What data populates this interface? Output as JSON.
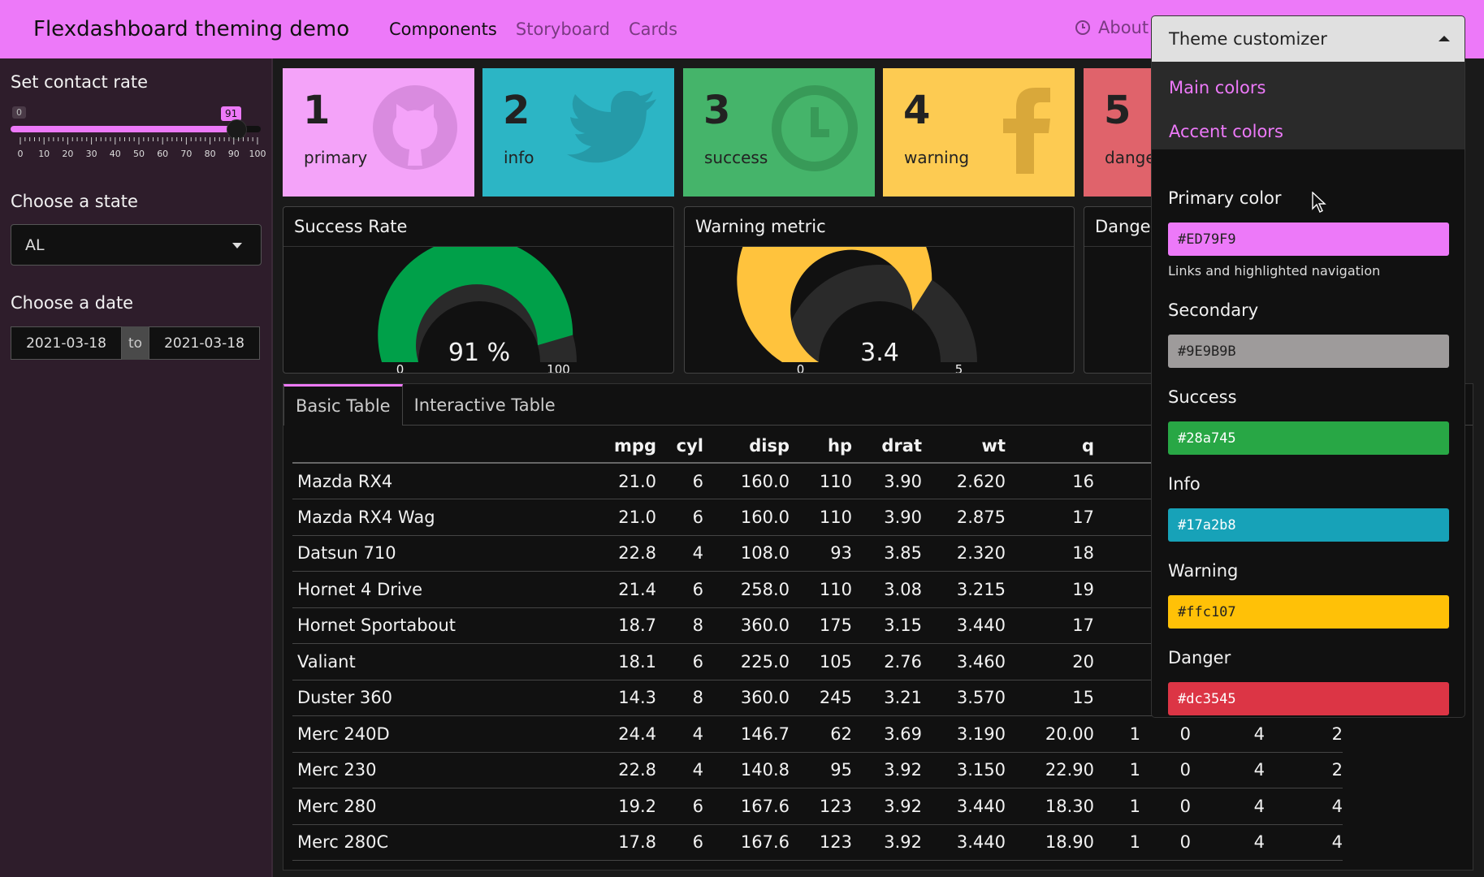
{
  "navbar": {
    "brand": "Flexdashboard theming demo",
    "links": [
      "Components",
      "Storyboard",
      "Cards"
    ],
    "about": "About",
    "bg_color": "#ED79F9"
  },
  "sidebar": {
    "contact_label": "Set contact rate",
    "slider": {
      "min": 0,
      "max": 100,
      "value": 91,
      "min_label": "0",
      "value_label": "91",
      "ticks": [
        "0",
        "10",
        "20",
        "30",
        "40",
        "50",
        "60",
        "70",
        "80",
        "90",
        "100"
      ]
    },
    "state_label": "Choose a state",
    "state_value": "AL",
    "date_label": "Choose a date",
    "date_start": "2021-03-18",
    "date_sep": "to",
    "date_end": "2021-03-18"
  },
  "value_boxes": [
    {
      "num": "1",
      "caption": "primary",
      "color": "#F4A3F9",
      "icon": "github-icon"
    },
    {
      "num": "2",
      "caption": "info",
      "color": "#2CB5C5",
      "icon": "twitter-icon"
    },
    {
      "num": "3",
      "caption": "success",
      "color": "#45B46A",
      "icon": "clock-icon"
    },
    {
      "num": "4",
      "caption": "warning",
      "color": "#FDCB52",
      "icon": "facebook-icon"
    },
    {
      "num": "5",
      "caption": "danger",
      "color": "#E0636B",
      "icon": "none"
    }
  ],
  "gauges": [
    {
      "title": "Success Rate",
      "value": 91,
      "min": 0,
      "max": 100,
      "display": "91 %",
      "min_label": "0",
      "max_label": "100",
      "color": "#00A049"
    },
    {
      "title": "Warning metric",
      "value": 3.4,
      "min": 0,
      "max": 5,
      "display": "3.4",
      "min_label": "0",
      "max_label": "5",
      "color": "#FFC33D"
    },
    {
      "title": "Danger"
    }
  ],
  "tabs": [
    "Basic Table",
    "Interactive Table"
  ],
  "table": {
    "headers": [
      "",
      "mpg",
      "cyl",
      "disp",
      "hp",
      "drat",
      "wt",
      "q",
      "",
      "",
      "",
      ""
    ],
    "rows": [
      [
        "Mazda RX4",
        "21.0",
        "6",
        "160.0",
        "110",
        "3.90",
        "2.620",
        "16",
        "",
        "",
        "",
        ""
      ],
      [
        "Mazda RX4 Wag",
        "21.0",
        "6",
        "160.0",
        "110",
        "3.90",
        "2.875",
        "17",
        "",
        "",
        "",
        ""
      ],
      [
        "Datsun 710",
        "22.8",
        "4",
        "108.0",
        "93",
        "3.85",
        "2.320",
        "18",
        "",
        "",
        "",
        ""
      ],
      [
        "Hornet 4 Drive",
        "21.4",
        "6",
        "258.0",
        "110",
        "3.08",
        "3.215",
        "19",
        "",
        "",
        "",
        ""
      ],
      [
        "Hornet Sportabout",
        "18.7",
        "8",
        "360.0",
        "175",
        "3.15",
        "3.440",
        "17",
        "",
        "",
        "",
        ""
      ],
      [
        "Valiant",
        "18.1",
        "6",
        "225.0",
        "105",
        "2.76",
        "3.460",
        "20",
        "",
        "",
        "",
        ""
      ],
      [
        "Duster 360",
        "14.3",
        "8",
        "360.0",
        "245",
        "3.21",
        "3.570",
        "15",
        "",
        "",
        "",
        ""
      ],
      [
        "Merc 240D",
        "24.4",
        "4",
        "146.7",
        "62",
        "3.69",
        "3.190",
        "20.00",
        "1",
        "0",
        "4",
        "2"
      ],
      [
        "Merc 230",
        "22.8",
        "4",
        "140.8",
        "95",
        "3.92",
        "3.150",
        "22.90",
        "1",
        "0",
        "4",
        "2"
      ],
      [
        "Merc 280",
        "19.2",
        "6",
        "167.6",
        "123",
        "3.92",
        "3.440",
        "18.30",
        "1",
        "0",
        "4",
        "4"
      ],
      [
        "Merc 280C",
        "17.8",
        "6",
        "167.6",
        "123",
        "3.92",
        "3.440",
        "18.90",
        "1",
        "0",
        "4",
        "4"
      ]
    ]
  },
  "customizer": {
    "title": "Theme customizer",
    "menu": [
      "Main colors",
      "Accent colors"
    ],
    "fields": [
      {
        "label": "Primary color",
        "value": "#ED79F9",
        "bg": "#ED79F9",
        "fg": "#222222",
        "help": "Links and highlighted navigation"
      },
      {
        "label": "Secondary",
        "value": "#9E9B9B",
        "bg": "#9E9B9B",
        "fg": "#222222"
      },
      {
        "label": "Success",
        "value": "#28a745",
        "bg": "#28a745",
        "fg": "#ffffff"
      },
      {
        "label": "Info",
        "value": "#17a2b8",
        "bg": "#17a2b8",
        "fg": "#ffffff"
      },
      {
        "label": "Warning",
        "value": "#ffc107",
        "bg": "#ffc107",
        "fg": "#222222"
      },
      {
        "label": "Danger",
        "value": "#dc3545",
        "bg": "#dc3545",
        "fg": "#ffffff"
      }
    ]
  }
}
